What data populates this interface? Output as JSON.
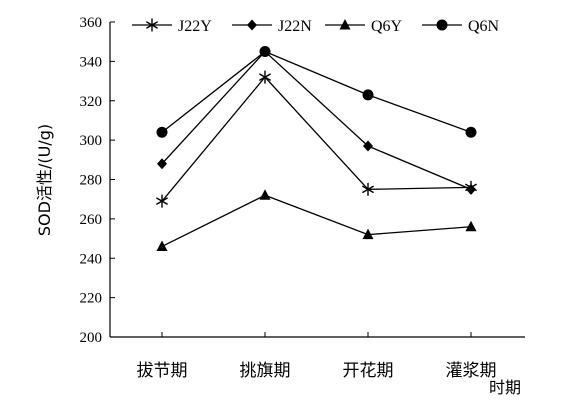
{
  "chart_data": {
    "type": "line",
    "title": "",
    "xlabel": "时期",
    "ylabel": "SOD活性/(U/g)",
    "categories": [
      "拔节期",
      "挑旗期",
      "开花期",
      "灌浆期"
    ],
    "ylim": [
      200,
      360
    ],
    "yticks": [
      "200",
      "220",
      "240",
      "260",
      "280",
      "300",
      "320",
      "340",
      "360"
    ],
    "grid": false,
    "legend_position": "top",
    "series": [
      {
        "name": "J22Y",
        "marker": "asterisk",
        "values": [
          269,
          332,
          275,
          276
        ]
      },
      {
        "name": "J22N",
        "marker": "diamond",
        "values": [
          288,
          345,
          297,
          275
        ]
      },
      {
        "name": "Q6Y",
        "marker": "triangle",
        "values": [
          246,
          272,
          252,
          256
        ]
      },
      {
        "name": "Q6N",
        "marker": "circle",
        "values": [
          304,
          345,
          323,
          304
        ]
      }
    ]
  }
}
